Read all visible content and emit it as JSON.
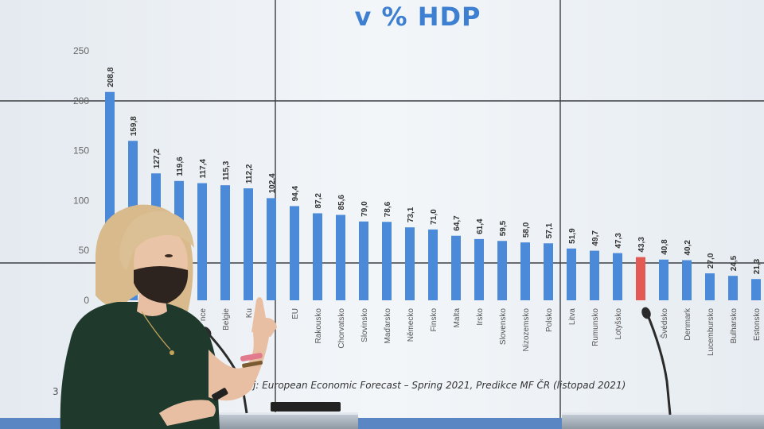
{
  "slide": {
    "title": "v % HDP",
    "source": "j: European Economic Forecast – Spring 2021, Predikce MF ČR (listopad 2021)",
    "page_number": "3"
  },
  "colors": {
    "bar": "#4a8ad8",
    "highlight": "#e35a55",
    "screen": "#eef2f6",
    "dress": "#1f3a2d",
    "hair": "#d6b888",
    "mask": "#2d2420"
  },
  "chart_data": {
    "type": "bar",
    "title": "v % HDP",
    "ylim": [
      0,
      250
    ],
    "yticks": [
      "250",
      "200",
      "150",
      "100",
      "50",
      "0"
    ],
    "categories": [
      "",
      "",
      "",
      "",
      "nce",
      "Belgie",
      "Ku",
      "",
      "EU",
      "Rakousko",
      "Chorvatsko",
      "Slovinsko",
      "Maďarsko",
      "Německo",
      "Finsko",
      "Malta",
      "Irsko",
      "Slovensko",
      "Nizozemsko",
      "Polsko",
      "Litva",
      "Rumunsko",
      "Lotyšsko",
      "",
      "Švédsko",
      "Denmark",
      "Lucembursko",
      "Bulharsko",
      "Estonsko"
    ],
    "values": [
      208.8,
      159.8,
      127.2,
      119.6,
      117.4,
      115.3,
      112.2,
      102.4,
      94.4,
      87.2,
      85.6,
      79.0,
      78.6,
      73.1,
      71.0,
      64.7,
      61.4,
      59.5,
      58.0,
      57.1,
      51.9,
      49.7,
      47.3,
      43.3,
      40.8,
      40.2,
      27.0,
      24.5,
      21.3
    ],
    "labels": [
      "208,8",
      "159,8",
      "127,2",
      "119,6",
      "117,4",
      "115,3",
      "112,2",
      "102,4",
      "94,4",
      "87,2",
      "85,6",
      "79,0",
      "78,6",
      "73,1",
      "71,0",
      "64,7",
      "61,4",
      "59,5",
      "58,0",
      "57,1",
      "51,9",
      "49,7",
      "47,3",
      "43,3",
      "40,8",
      "40,2",
      "27,0",
      "24,5",
      "21,3"
    ],
    "highlight_index": 23
  }
}
